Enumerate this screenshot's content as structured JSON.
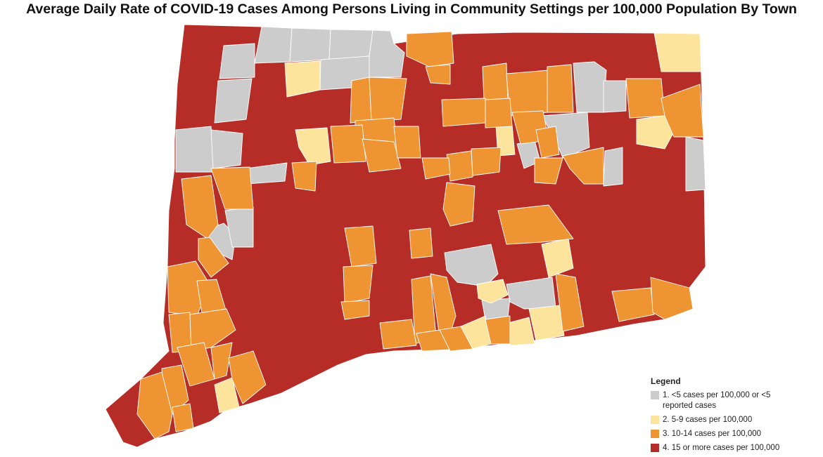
{
  "title": "Average Daily Rate of COVID-19 Cases Among Persons Living in Community Settings per 100,000 Population By Town",
  "legend": {
    "title": "Legend",
    "items": [
      {
        "label": "1. <5 cases per 100,000 or <5 reported cases",
        "color": "#cccccc"
      },
      {
        "label": "2. 5-9 cases per 100,000",
        "color": "#fce49c"
      },
      {
        "label": "3. 10-14 cases per 100,000",
        "color": "#ee9433"
      },
      {
        "label": "4. 15 or more cases per 100,000",
        "color": "#b62d27"
      }
    ]
  },
  "map": {
    "region": "Connecticut towns",
    "background_category": 4,
    "default_color": "#b62d27"
  }
}
